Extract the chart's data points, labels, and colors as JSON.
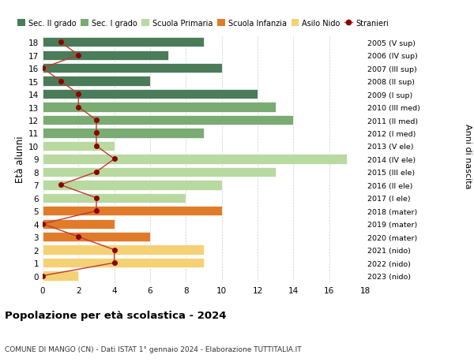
{
  "ages": [
    18,
    17,
    16,
    15,
    14,
    13,
    12,
    11,
    10,
    9,
    8,
    7,
    6,
    5,
    4,
    3,
    2,
    1,
    0
  ],
  "years_labels": [
    "2005 (V sup)",
    "2006 (IV sup)",
    "2007 (III sup)",
    "2008 (II sup)",
    "2009 (I sup)",
    "2010 (III med)",
    "2011 (II med)",
    "2012 (I med)",
    "2013 (V ele)",
    "2014 (IV ele)",
    "2015 (III ele)",
    "2016 (II ele)",
    "2017 (I ele)",
    "2018 (mater)",
    "2019 (mater)",
    "2020 (mater)",
    "2021 (nido)",
    "2022 (nido)",
    "2023 (nido)"
  ],
  "bar_values": [
    9,
    7,
    10,
    6,
    12,
    13,
    14,
    9,
    4,
    17,
    13,
    10,
    8,
    10,
    4,
    6,
    9,
    9,
    2
  ],
  "bar_colors": [
    "#4a7c59",
    "#4a7c59",
    "#4a7c59",
    "#4a7c59",
    "#4a7c59",
    "#7aab72",
    "#7aab72",
    "#7aab72",
    "#b8d9a0",
    "#b8d9a0",
    "#b8d9a0",
    "#b8d9a0",
    "#b8d9a0",
    "#e07b2a",
    "#e07b2a",
    "#e07b2a",
    "#f5d176",
    "#f5d176",
    "#f5d176"
  ],
  "stranieri_values": [
    1,
    2,
    0,
    1,
    2,
    2,
    3,
    3,
    3,
    4,
    3,
    1,
    3,
    3,
    0,
    2,
    4,
    4,
    0
  ],
  "stranieri_color": "#8b0000",
  "stranieri_line_color": "#c0392b",
  "ylabel": "Età alunni",
  "right_label": "Anni di nascita",
  "title": "Popolazione per età scolastica - 2024",
  "subtitle": "COMUNE DI MANGO (CN) - Dati ISTAT 1° gennaio 2024 - Elaborazione TUTTITALIA.IT",
  "xlim": [
    0,
    18
  ],
  "legend_labels": [
    "Sec. II grado",
    "Sec. I grado",
    "Scuola Primaria",
    "Scuola Infanzia",
    "Asilo Nido",
    "Stranieri"
  ],
  "legend_colors": [
    "#4a7c59",
    "#7aab72",
    "#b8d9a0",
    "#e07b2a",
    "#f5d176",
    "#8b0000"
  ],
  "bg_color": "#ffffff",
  "grid_color": "#cccccc"
}
